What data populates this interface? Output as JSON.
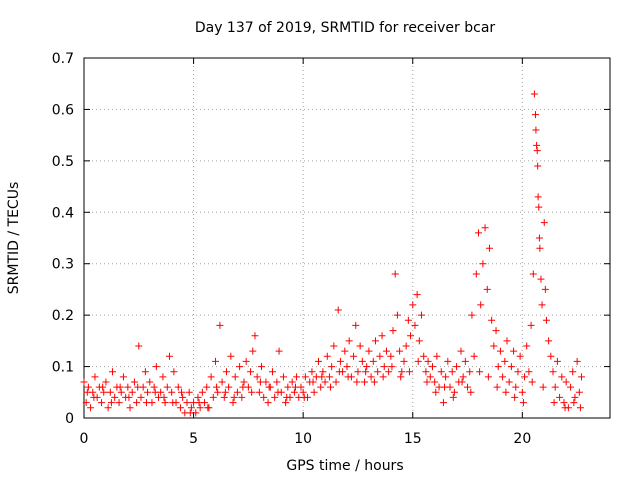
{
  "chart_data": {
    "type": "scatter",
    "title": "Day 137 of 2019, SRMTID for receiver bcar",
    "xlabel": "GPS time / hours",
    "ylabel": "SRMTID / TECUs",
    "xlim": [
      0,
      24
    ],
    "ylim": [
      0,
      0.7
    ],
    "xticks": [
      0,
      5,
      10,
      15,
      20
    ],
    "xtick_labels": [
      "0",
      "5",
      "10",
      "15",
      "20"
    ],
    "yticks": [
      0,
      0.1,
      0.2,
      0.3,
      0.4,
      0.5,
      0.6,
      0.7
    ],
    "ytick_labels": [
      "0",
      "0.1",
      "0.2",
      "0.3",
      "0.4",
      "0.5",
      "0.6",
      "0.7"
    ],
    "grid": true,
    "marker": "+",
    "series": [
      {
        "name": "SRMTID",
        "color": "#ff0000",
        "points": [
          [
            0.0,
            0.07
          ],
          [
            0.1,
            0.03
          ],
          [
            0.2,
            0.06
          ],
          [
            0.3,
            0.02
          ],
          [
            0.4,
            0.05
          ],
          [
            0.5,
            0.08
          ],
          [
            0.6,
            0.04
          ],
          [
            0.7,
            0.06
          ],
          [
            0.8,
            0.03
          ],
          [
            0.9,
            0.05
          ],
          [
            1.0,
            0.07
          ],
          [
            1.1,
            0.02
          ],
          [
            1.2,
            0.05
          ],
          [
            1.3,
            0.09
          ],
          [
            1.4,
            0.04
          ],
          [
            1.5,
            0.06
          ],
          [
            1.6,
            0.03
          ],
          [
            1.7,
            0.05
          ],
          [
            1.8,
            0.08
          ],
          [
            1.9,
            0.04
          ],
          [
            2.0,
            0.06
          ],
          [
            2.1,
            0.02
          ],
          [
            2.2,
            0.05
          ],
          [
            2.3,
            0.07
          ],
          [
            2.4,
            0.03
          ],
          [
            2.5,
            0.14
          ],
          [
            2.6,
            0.04
          ],
          [
            2.7,
            0.06
          ],
          [
            2.8,
            0.09
          ],
          [
            2.9,
            0.05
          ],
          [
            3.0,
            0.07
          ],
          [
            3.1,
            0.03
          ],
          [
            3.2,
            0.06
          ],
          [
            3.3,
            0.1
          ],
          [
            3.4,
            0.04
          ],
          [
            3.5,
            0.05
          ],
          [
            3.6,
            0.08
          ],
          [
            3.7,
            0.03
          ],
          [
            3.8,
            0.06
          ],
          [
            3.9,
            0.12
          ],
          [
            4.0,
            0.05
          ],
          [
            4.1,
            0.09
          ],
          [
            4.2,
            0.03
          ],
          [
            4.3,
            0.06
          ],
          [
            4.4,
            0.02
          ],
          [
            4.5,
            0.04
          ],
          [
            4.6,
            0.01
          ],
          [
            4.7,
            0.03
          ],
          [
            4.8,
            0.05
          ],
          [
            4.9,
            0.02
          ],
          [
            5.0,
            0.03
          ],
          [
            5.1,
            0.01
          ],
          [
            5.2,
            0.04
          ],
          [
            5.3,
            0.02
          ],
          [
            5.4,
            0.05
          ],
          [
            5.5,
            0.03
          ],
          [
            5.6,
            0.06
          ],
          [
            5.7,
            0.02
          ],
          [
            5.8,
            0.08
          ],
          [
            5.9,
            0.04
          ],
          [
            6.0,
            0.11
          ],
          [
            6.1,
            0.05
          ],
          [
            6.2,
            0.18
          ],
          [
            6.3,
            0.07
          ],
          [
            6.4,
            0.04
          ],
          [
            6.5,
            0.09
          ],
          [
            6.6,
            0.06
          ],
          [
            6.7,
            0.12
          ],
          [
            6.8,
            0.03
          ],
          [
            6.9,
            0.08
          ],
          [
            7.0,
            0.05
          ],
          [
            7.1,
            0.1
          ],
          [
            7.2,
            0.04
          ],
          [
            7.3,
            0.07
          ],
          [
            7.4,
            0.11
          ],
          [
            7.5,
            0.06
          ],
          [
            7.6,
            0.09
          ],
          [
            7.7,
            0.13
          ],
          [
            7.8,
            0.16
          ],
          [
            7.9,
            0.08
          ],
          [
            8.0,
            0.05
          ],
          [
            8.1,
            0.1
          ],
          [
            8.2,
            0.04
          ],
          [
            8.3,
            0.07
          ],
          [
            8.4,
            0.03
          ],
          [
            8.5,
            0.06
          ],
          [
            8.6,
            0.09
          ],
          [
            8.7,
            0.04
          ],
          [
            8.8,
            0.07
          ],
          [
            8.9,
            0.13
          ],
          [
            9.0,
            0.05
          ],
          [
            9.1,
            0.08
          ],
          [
            9.2,
            0.03
          ],
          [
            9.3,
            0.06
          ],
          [
            9.4,
            0.04
          ],
          [
            9.5,
            0.07
          ],
          [
            9.6,
            0.05
          ],
          [
            9.7,
            0.08
          ],
          [
            9.8,
            0.04
          ],
          [
            9.9,
            0.06
          ],
          [
            10.0,
            0.05
          ],
          [
            10.1,
            0.08
          ],
          [
            10.2,
            0.04
          ],
          [
            10.3,
            0.07
          ],
          [
            10.4,
            0.09
          ],
          [
            10.5,
            0.05
          ],
          [
            10.6,
            0.08
          ],
          [
            10.7,
            0.11
          ],
          [
            10.8,
            0.06
          ],
          [
            10.9,
            0.09
          ],
          [
            11.0,
            0.07
          ],
          [
            11.1,
            0.12
          ],
          [
            11.2,
            0.08
          ],
          [
            11.3,
            0.1
          ],
          [
            11.4,
            0.14
          ],
          [
            11.5,
            0.07
          ],
          [
            11.6,
            0.21
          ],
          [
            11.7,
            0.11
          ],
          [
            11.8,
            0.09
          ],
          [
            11.9,
            0.13
          ],
          [
            12.0,
            0.1
          ],
          [
            12.1,
            0.15
          ],
          [
            12.2,
            0.08
          ],
          [
            12.3,
            0.12
          ],
          [
            12.4,
            0.18
          ],
          [
            12.5,
            0.09
          ],
          [
            12.6,
            0.14
          ],
          [
            12.7,
            0.11
          ],
          [
            12.8,
            0.07
          ],
          [
            12.9,
            0.1
          ],
          [
            13.0,
            0.13
          ],
          [
            13.1,
            0.08
          ],
          [
            13.2,
            0.11
          ],
          [
            13.3,
            0.15
          ],
          [
            13.4,
            0.09
          ],
          [
            13.5,
            0.12
          ],
          [
            13.6,
            0.16
          ],
          [
            13.7,
            0.1
          ],
          [
            13.8,
            0.13
          ],
          [
            13.9,
            0.09
          ],
          [
            14.0,
            0.12
          ],
          [
            14.1,
            0.17
          ],
          [
            14.2,
            0.28
          ],
          [
            14.3,
            0.2
          ],
          [
            14.4,
            0.13
          ],
          [
            14.5,
            0.09
          ],
          [
            14.6,
            0.11
          ],
          [
            14.7,
            0.14
          ],
          [
            14.8,
            0.19
          ],
          [
            14.9,
            0.16
          ],
          [
            15.0,
            0.22
          ],
          [
            15.1,
            0.18
          ],
          [
            15.2,
            0.24
          ],
          [
            15.3,
            0.15
          ],
          [
            15.4,
            0.2
          ],
          [
            15.5,
            0.12
          ],
          [
            15.6,
            0.09
          ],
          [
            15.7,
            0.11
          ],
          [
            15.8,
            0.08
          ],
          [
            15.9,
            0.1
          ],
          [
            16.0,
            0.07
          ],
          [
            16.1,
            0.12
          ],
          [
            16.2,
            0.06
          ],
          [
            16.3,
            0.09
          ],
          [
            16.4,
            0.03
          ],
          [
            16.5,
            0.08
          ],
          [
            16.6,
            0.11
          ],
          [
            16.7,
            0.06
          ],
          [
            16.8,
            0.09
          ],
          [
            16.9,
            0.05
          ],
          [
            17.0,
            0.1
          ],
          [
            17.1,
            0.07
          ],
          [
            17.2,
            0.13
          ],
          [
            17.3,
            0.08
          ],
          [
            17.4,
            0.11
          ],
          [
            17.5,
            0.06
          ],
          [
            17.6,
            0.09
          ],
          [
            17.7,
            0.2
          ],
          [
            17.8,
            0.12
          ],
          [
            17.9,
            0.28
          ],
          [
            18.0,
            0.36
          ],
          [
            18.1,
            0.22
          ],
          [
            18.2,
            0.3
          ],
          [
            18.3,
            0.37
          ],
          [
            18.4,
            0.25
          ],
          [
            18.5,
            0.33
          ],
          [
            18.6,
            0.19
          ],
          [
            18.7,
            0.14
          ],
          [
            18.8,
            0.17
          ],
          [
            18.9,
            0.1
          ],
          [
            19.0,
            0.13
          ],
          [
            19.1,
            0.08
          ],
          [
            19.2,
            0.11
          ],
          [
            19.3,
            0.15
          ],
          [
            19.4,
            0.07
          ],
          [
            19.5,
            0.1
          ],
          [
            19.6,
            0.13
          ],
          [
            19.7,
            0.06
          ],
          [
            19.8,
            0.09
          ],
          [
            19.9,
            0.12
          ],
          [
            20.0,
            0.05
          ],
          [
            20.1,
            0.08
          ],
          [
            20.2,
            0.14
          ],
          [
            20.3,
            0.09
          ],
          [
            20.4,
            0.18
          ],
          [
            20.5,
            0.28
          ],
          [
            20.55,
            0.63
          ],
          [
            20.6,
            0.59
          ],
          [
            20.62,
            0.56
          ],
          [
            20.65,
            0.53
          ],
          [
            20.68,
            0.52
          ],
          [
            20.7,
            0.49
          ],
          [
            20.72,
            0.43
          ],
          [
            20.75,
            0.41
          ],
          [
            20.78,
            0.35
          ],
          [
            20.8,
            0.33
          ],
          [
            20.85,
            0.27
          ],
          [
            20.9,
            0.22
          ],
          [
            21.0,
            0.38
          ],
          [
            21.05,
            0.25
          ],
          [
            21.1,
            0.19
          ],
          [
            21.2,
            0.15
          ],
          [
            21.3,
            0.12
          ],
          [
            21.4,
            0.09
          ],
          [
            21.5,
            0.06
          ],
          [
            21.6,
            0.11
          ],
          [
            21.7,
            0.04
          ],
          [
            21.8,
            0.08
          ],
          [
            21.9,
            0.03
          ],
          [
            22.0,
            0.07
          ],
          [
            22.1,
            0.02
          ],
          [
            22.2,
            0.06
          ],
          [
            22.3,
            0.09
          ],
          [
            22.4,
            0.04
          ],
          [
            22.5,
            0.11
          ],
          [
            22.6,
            0.05
          ],
          [
            22.7,
            0.08
          ],
          [
            0.15,
            0.05
          ],
          [
            0.45,
            0.04
          ],
          [
            0.85,
            0.06
          ],
          [
            1.25,
            0.03
          ],
          [
            1.65,
            0.06
          ],
          [
            2.05,
            0.04
          ],
          [
            2.45,
            0.06
          ],
          [
            2.85,
            0.03
          ],
          [
            3.25,
            0.05
          ],
          [
            3.65,
            0.04
          ],
          [
            4.05,
            0.03
          ],
          [
            4.45,
            0.05
          ],
          [
            4.85,
            0.01
          ],
          [
            5.25,
            0.03
          ],
          [
            5.65,
            0.02
          ],
          [
            6.05,
            0.06
          ],
          [
            6.45,
            0.05
          ],
          [
            6.85,
            0.04
          ],
          [
            7.25,
            0.06
          ],
          [
            7.65,
            0.05
          ],
          [
            8.05,
            0.07
          ],
          [
            8.45,
            0.06
          ],
          [
            8.85,
            0.05
          ],
          [
            9.25,
            0.04
          ],
          [
            9.65,
            0.06
          ],
          [
            10.05,
            0.04
          ],
          [
            10.45,
            0.07
          ],
          [
            10.85,
            0.08
          ],
          [
            11.25,
            0.06
          ],
          [
            11.65,
            0.09
          ],
          [
            12.05,
            0.08
          ],
          [
            12.45,
            0.07
          ],
          [
            12.85,
            0.09
          ],
          [
            13.25,
            0.07
          ],
          [
            13.65,
            0.08
          ],
          [
            14.05,
            0.1
          ],
          [
            14.45,
            0.08
          ],
          [
            14.85,
            0.09
          ],
          [
            15.25,
            0.11
          ],
          [
            15.65,
            0.07
          ],
          [
            16.05,
            0.05
          ],
          [
            16.45,
            0.06
          ],
          [
            16.85,
            0.04
          ],
          [
            17.25,
            0.07
          ],
          [
            17.65,
            0.05
          ],
          [
            18.05,
            0.09
          ],
          [
            18.45,
            0.08
          ],
          [
            18.85,
            0.06
          ],
          [
            19.25,
            0.05
          ],
          [
            19.65,
            0.04
          ],
          [
            20.05,
            0.03
          ],
          [
            20.45,
            0.07
          ],
          [
            20.95,
            0.06
          ],
          [
            21.45,
            0.03
          ],
          [
            21.95,
            0.02
          ],
          [
            22.35,
            0.03
          ],
          [
            22.65,
            0.02
          ]
        ]
      }
    ]
  }
}
